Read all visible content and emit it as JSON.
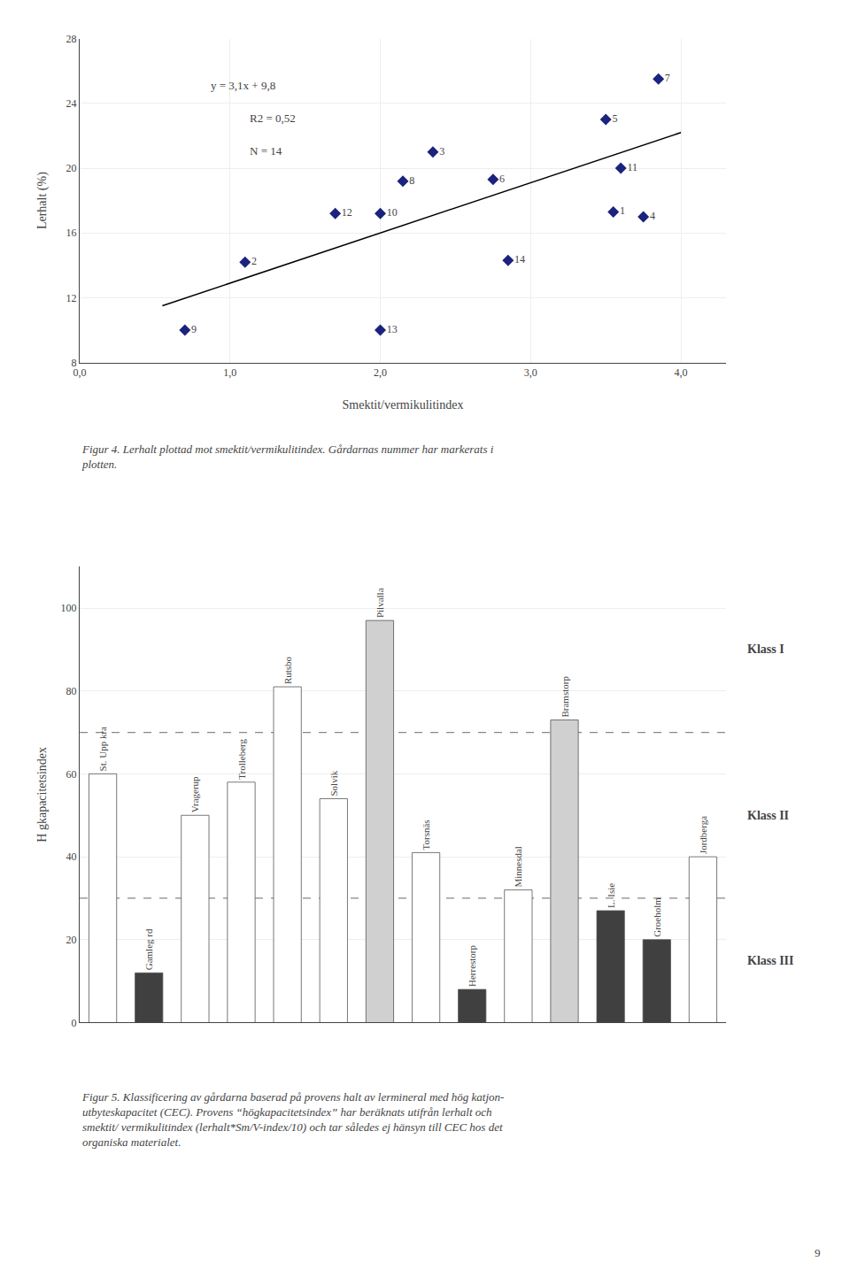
{
  "chart_data": [
    {
      "type": "scatter",
      "xlabel": "Smektit/vermikulitindex",
      "ylabel": "Lerhalt (%)",
      "series": [
        {
          "type": "scatter",
          "marker": "diamond",
          "color": "#1a237e",
          "x": [
            0.7,
            1.1,
            2.0,
            2.0,
            2.15,
            2.35,
            2.75,
            2.85,
            3.5,
            3.55,
            3.6,
            3.75,
            1.7,
            3.85
          ],
          "values": [
            10.0,
            14.2,
            10.0,
            17.2,
            19.2,
            21.0,
            19.3,
            14.3,
            23.0,
            17.3,
            20.0,
            17.0,
            17.2,
            25.5
          ],
          "labels": [
            "9",
            "2",
            "13",
            "10",
            "8",
            "3",
            "6",
            "14",
            "5",
            "1",
            "11",
            "4",
            "12",
            "7"
          ]
        },
        {
          "type": "line",
          "color": "black",
          "line_style": "solid",
          "x": [
            0.55,
            4.0
          ],
          "values": [
            11.505,
            22.2
          ]
        }
      ],
      "annotations": [
        "y = 3,1x + 9,8",
        "R2 = 0,52",
        "N = 14"
      ],
      "caption": [
        "Figur 4. Lerhalt plottad mot smektit/vermikulitindex. Gårdarnas nummer har markerats i",
        "plotten."
      ],
      "xlim": [
        0.0,
        4.3
      ],
      "xticks": [
        {
          "value": 0.0,
          "label": "0,0"
        },
        {
          "value": 1.0,
          "label": "1,0"
        },
        {
          "value": 2.0,
          "label": "2,0"
        },
        {
          "value": 3.0,
          "label": "3,0"
        },
        {
          "value": 4.0,
          "label": "4,0"
        }
      ],
      "ylim": [
        8,
        28
      ],
      "yticks": [
        8,
        12,
        16,
        20,
        24,
        28
      ]
    },
    {
      "type": "bar",
      "ylabel": "H gkapacitetsindex",
      "categories": [
        "St. Upp kra",
        "Gamleg rd",
        "Vragerup",
        "Trolleberg",
        "Rutsbo",
        "Solvik",
        "Pilvalla",
        "Torsnäs",
        "Herrestorp",
        "Minnesdal",
        "Bramstorp",
        "L. Isie",
        "Groeholm",
        "Jordberga"
      ],
      "values": [
        60,
        12,
        50,
        58,
        81,
        54,
        97,
        41,
        8,
        32,
        73,
        27,
        20,
        40
      ],
      "colors": [
        "white",
        "#404040",
        "white",
        "white",
        "white",
        "white",
        "#d0d0d0",
        "white",
        "#404040",
        "white",
        "#d0d0d0",
        "#404040",
        "#404040",
        "white"
      ],
      "edgecolor": "#555555",
      "tick_labels": "y",
      "reference_lines": [
        {
          "value": 70,
          "color": "#888888",
          "line_style": "dashed"
        },
        {
          "value": 30,
          "color": "#888888",
          "line_style": "dashed"
        }
      ],
      "zone_labels": [
        "Klass I",
        "Klass II",
        "Klass III"
      ],
      "caption": "Figur 5. Klassificering av gårdarna baserad på provens halt av lermineral med hög katjon-\nutbyteskapacitet (CEC). Provens “högkapacitetsindex” har beräknats utifrån lerhalt och\nsmektit/ vermikulitindex (lerhalt*Sm/V-index/10) och tar således ej hänsyn till CEC hos det\norganiska materialet.",
      "ylim": [
        0,
        110
      ],
      "yticks": [
        0,
        20,
        40,
        60,
        80,
        100
      ]
    }
  ],
  "page_number": "9"
}
